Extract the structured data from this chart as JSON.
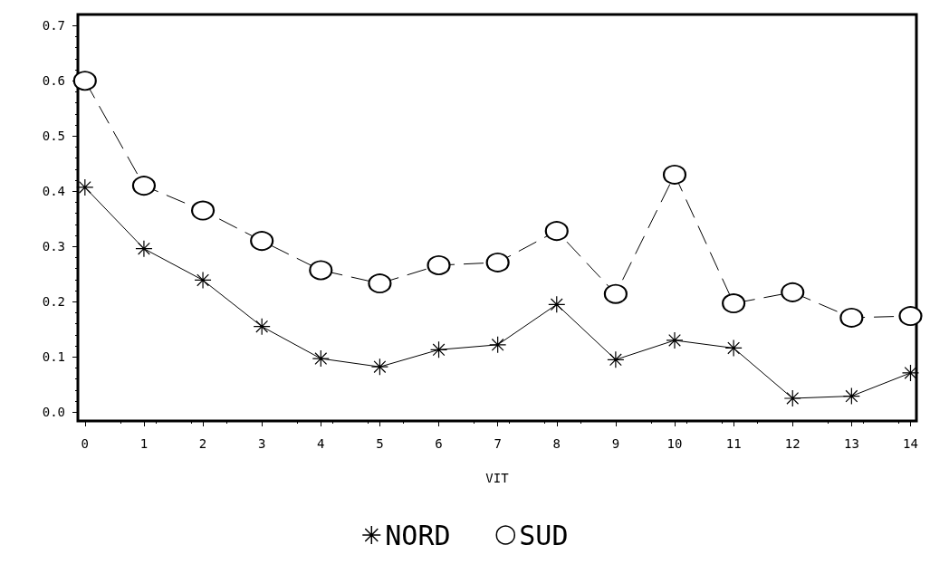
{
  "chart_data": {
    "type": "line",
    "xlabel": "VIT",
    "x": [
      0,
      1,
      2,
      3,
      4,
      5,
      6,
      7,
      8,
      9,
      10,
      11,
      12,
      13,
      14
    ],
    "series": [
      {
        "name": "NORD",
        "color": "#000000",
        "marker": "cross",
        "line_style": "solid",
        "values": [
          0.407,
          0.296,
          0.239,
          0.155,
          0.097,
          0.082,
          0.113,
          0.122,
          0.195,
          0.095,
          0.13,
          0.116,
          0.025,
          0.029,
          0.071
        ]
      },
      {
        "name": "SUD",
        "color": "#000000",
        "marker": "circle",
        "line_style": "dashed",
        "values": [
          0.6,
          0.41,
          0.365,
          0.31,
          0.257,
          0.233,
          0.266,
          0.271,
          0.328,
          0.214,
          0.43,
          0.197,
          0.217,
          0.171,
          0.174
        ]
      }
    ],
    "xlim": [
      -0.12,
      14.1
    ],
    "xticks": [
      0,
      1,
      2,
      3,
      4,
      5,
      6,
      7,
      8,
      9,
      10,
      11,
      12,
      13,
      14
    ],
    "ylim": [
      -0.016,
      0.72
    ],
    "yticks": [
      {
        "value": 0,
        "label": "0.0"
      },
      0.1,
      0.2,
      0.3,
      0.4,
      0.5,
      0.6,
      0.7
    ],
    "grid": false,
    "legend": "bottom"
  }
}
